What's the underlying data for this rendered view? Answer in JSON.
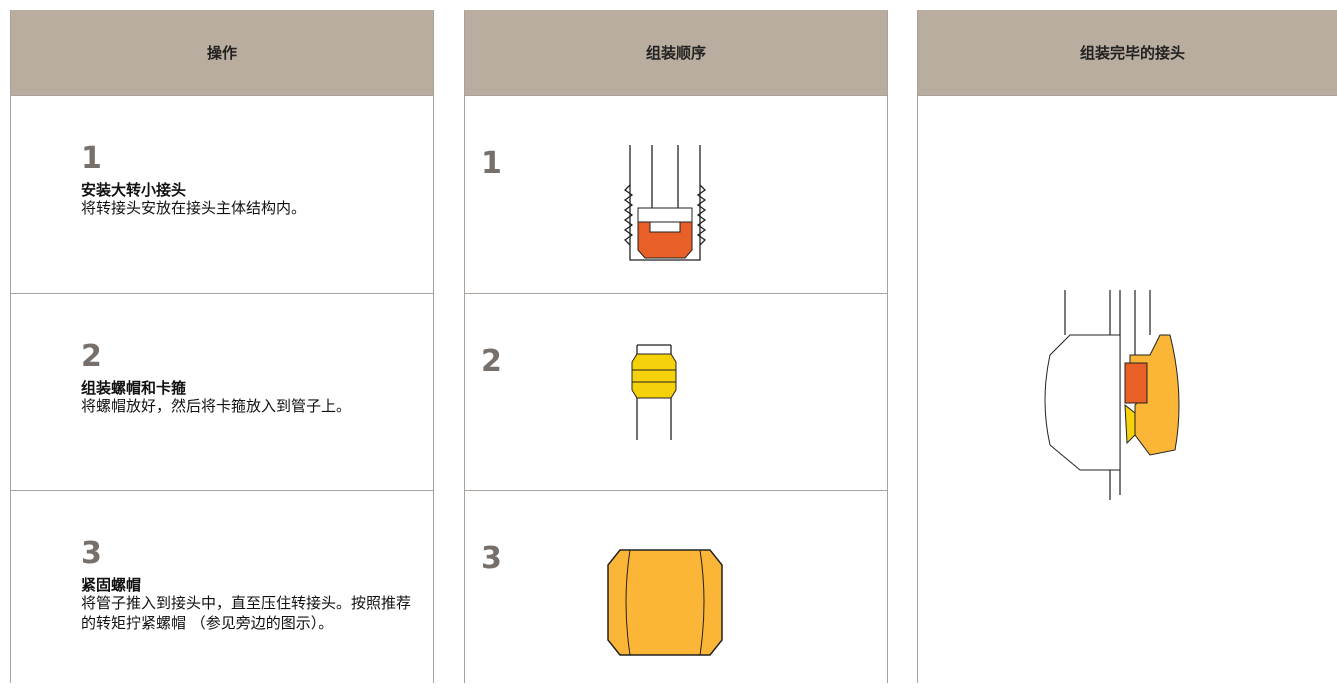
{
  "columns": [
    {
      "header": "操作"
    },
    {
      "header": "组装顺序"
    },
    {
      "header": "组装完毕的接头"
    }
  ],
  "steps": [
    {
      "number": "1",
      "title": "安装大转小接头",
      "description": "将转接头安放在接头主体结构内。"
    },
    {
      "number": "2",
      "title": "组装螺帽和卡箍",
      "description": "将螺帽放好，然后将卡箍放入到管子上。"
    },
    {
      "number": "3",
      "title": "紧固螺帽",
      "description": "将管子推入到接头中，直至压住转接头。按照推荐的转矩拧紧螺帽 （参见旁边的图示）。"
    }
  ],
  "sequence": [
    "1",
    "2",
    "3"
  ]
}
